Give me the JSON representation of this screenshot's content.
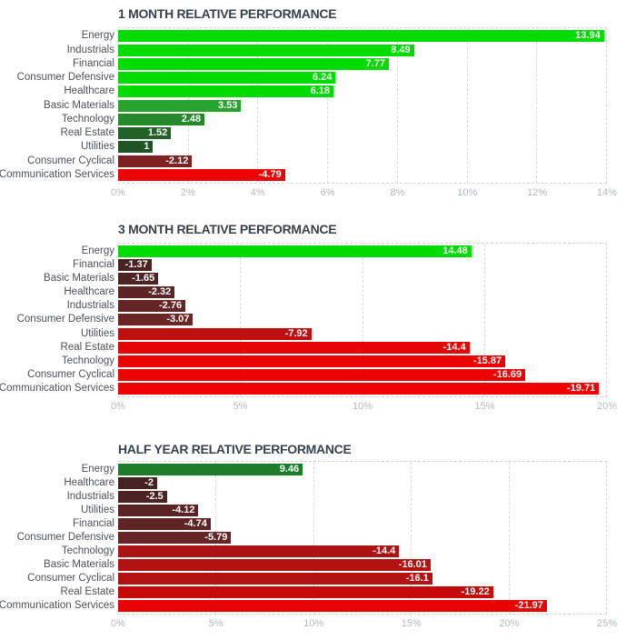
{
  "page": {
    "background_color": "#ffffff",
    "title_color": "#37424c",
    "grid_color": "#d6d6d6",
    "tick_label_color": "#b4bac0",
    "category_label_color": "#4d5257",
    "bar_value_label_color": "#ffffff"
  },
  "chart_data": [
    {
      "type": "bar",
      "orientation": "horizontal",
      "title": "1 MONTH RELATIVE PERFORMANCE",
      "xlabel": "",
      "ylabel": "",
      "xlim": [
        0,
        14
      ],
      "x_ticks": [
        "0%",
        "2%",
        "4%",
        "6%",
        "8%",
        "10%",
        "12%",
        "14%"
      ],
      "grid": "dashed-vertical",
      "note": "bar length = absolute value of percent; color encodes sign/magnitude",
      "categories": [
        "Energy",
        "Industrials",
        "Financial",
        "Consumer Defensive",
        "Healthcare",
        "Basic Materials",
        "Technology",
        "Real Estate",
        "Utilities",
        "Consumer Cyclical",
        "Communication Services"
      ],
      "values": [
        13.94,
        8.49,
        7.77,
        6.24,
        6.18,
        3.53,
        2.48,
        1.52,
        1,
        -2.12,
        -4.79
      ],
      "display_values": [
        "13.94",
        "8.49",
        "7.77",
        "6.24",
        "6.18",
        "3.53",
        "2.48",
        "1.52",
        "1",
        "-2.12",
        "-4.79"
      ],
      "bar_colors": [
        "#00db00",
        "#00db00",
        "#00db00",
        "#00db00",
        "#00db00",
        "#28a32e",
        "#26892c",
        "#236227",
        "#1f5524",
        "#7d2121",
        "#ed0402"
      ]
    },
    {
      "type": "bar",
      "orientation": "horizontal",
      "title": "3 MONTH RELATIVE PERFORMANCE",
      "xlabel": "",
      "ylabel": "",
      "xlim": [
        0,
        20
      ],
      "x_ticks": [
        "0%",
        "5%",
        "10%",
        "15%",
        "20%"
      ],
      "grid": "dashed-vertical",
      "note": "bar length = absolute value of percent; color encodes sign/magnitude",
      "categories": [
        "Energy",
        "Financial",
        "Basic Materials",
        "Healthcare",
        "Industrials",
        "Consumer Defensive",
        "Utilities",
        "Real Estate",
        "Technology",
        "Consumer Cyclical",
        "Communication Services"
      ],
      "values": [
        14.48,
        -1.37,
        -1.65,
        -2.32,
        -2.76,
        -3.07,
        -7.92,
        -14.4,
        -15.87,
        -16.69,
        -19.71
      ],
      "display_values": [
        "14.48",
        "-1.37",
        "-1.65",
        "-2.32",
        "-2.76",
        "-3.07",
        "-7.92",
        "-14.4",
        "-15.87",
        "-16.69",
        "-19.71"
      ],
      "bar_colors": [
        "#00db00",
        "#4a2222",
        "#502323",
        "#5c2424",
        "#642525",
        "#6b2525",
        "#bf0f0f",
        "#e60505",
        "#ea0404",
        "#ec0303",
        "#ee0202"
      ]
    },
    {
      "type": "bar",
      "orientation": "horizontal",
      "title": "HALF YEAR RELATIVE PERFORMANCE",
      "xlabel": "",
      "ylabel": "",
      "xlim": [
        0,
        25
      ],
      "x_ticks": [
        "0%",
        "5%",
        "10%",
        "15%",
        "20%",
        "25%"
      ],
      "grid": "dashed-vertical",
      "note": "bar length = absolute value of percent; color encodes sign/magnitude",
      "categories": [
        "Energy",
        "Healthcare",
        "Industrials",
        "Utilities",
        "Financial",
        "Consumer Defensive",
        "Technology",
        "Basic Materials",
        "Consumer Cyclical",
        "Real Estate",
        "Communication Services"
      ],
      "values": [
        9.46,
        -2,
        -2.5,
        -4.12,
        -4.74,
        -5.79,
        -14.4,
        -16.01,
        -16.1,
        -19.22,
        -21.97
      ],
      "display_values": [
        "9.46",
        "-2",
        "-2.5",
        "-4.12",
        "-4.74",
        "-5.79",
        "-14.4",
        "-16.01",
        "-16.1",
        "-19.22",
        "-21.97"
      ],
      "bar_colors": [
        "#1e7d2a",
        "#462222",
        "#4c2323",
        "#5a2424",
        "#5f2525",
        "#672525",
        "#ac1414",
        "#b31212",
        "#b31212",
        "#c60a0a",
        "#e80303"
      ]
    }
  ]
}
